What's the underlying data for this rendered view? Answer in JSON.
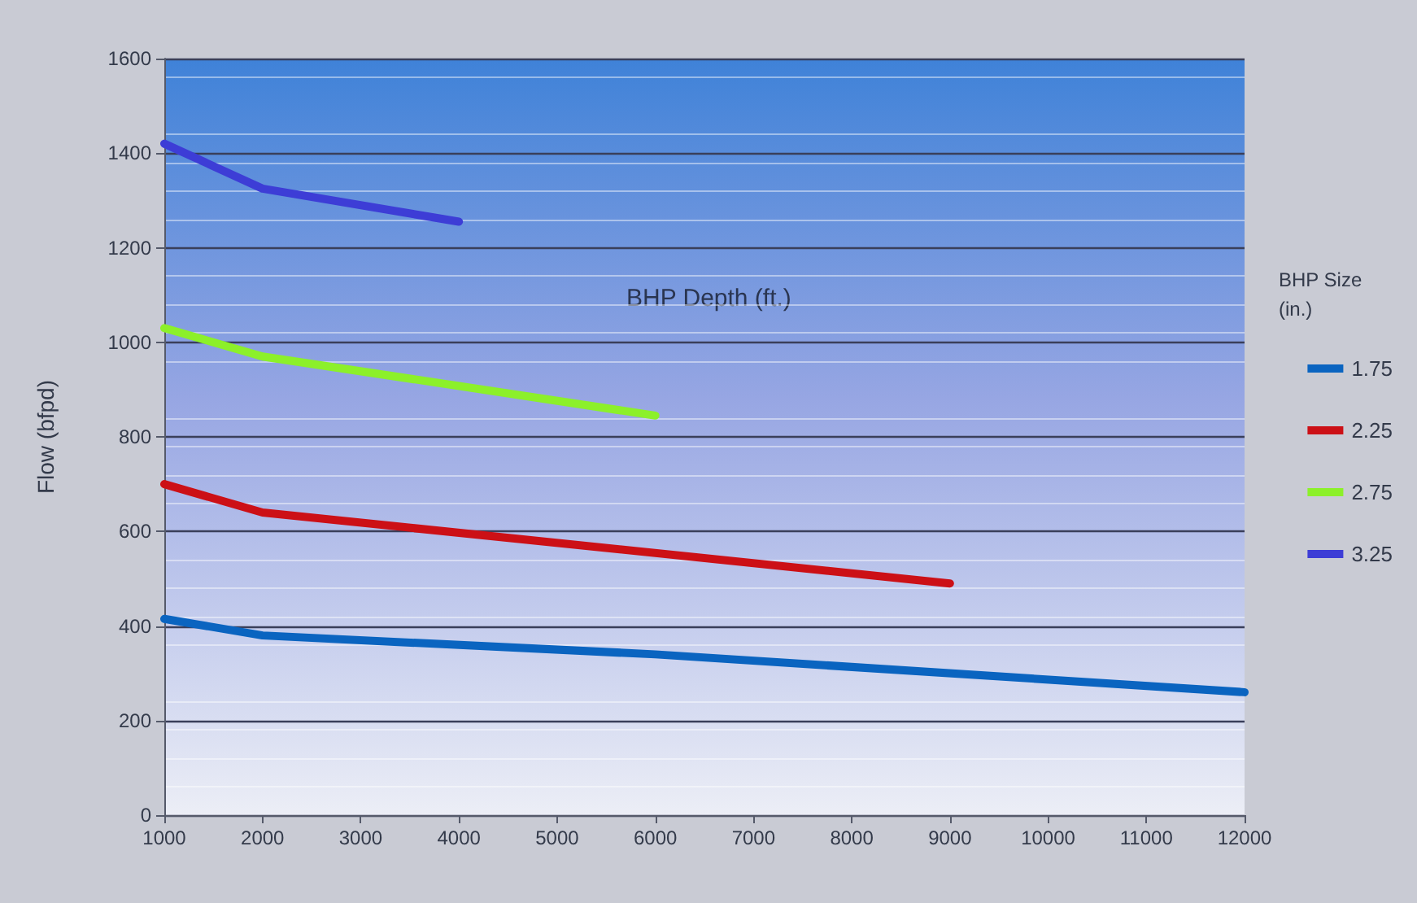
{
  "chart_data": {
    "type": "line",
    "xlabel": "BHP Depth (ft.)",
    "ylabel": "Flow (bfpd)",
    "legend_title": "BHP Size (in.)",
    "series": [
      {
        "name": "1.75",
        "color": "#0a64c0",
        "x": [
          1000,
          2000,
          6000,
          12000
        ],
        "values": [
          415,
          380,
          340,
          260
        ]
      },
      {
        "name": "2.25",
        "color": "#cc1016",
        "x": [
          1000,
          2000,
          9000
        ],
        "values": [
          700,
          640,
          490
        ]
      },
      {
        "name": "2.75",
        "color": "#8cf02a",
        "x": [
          1000,
          2000,
          6000
        ],
        "values": [
          1030,
          970,
          845
        ]
      },
      {
        "name": "3.25",
        "color": "#3d3dd6",
        "x": [
          1000,
          2000,
          4000
        ],
        "values": [
          1420,
          1325,
          1255
        ]
      }
    ],
    "xlim": [
      1000,
      12000
    ],
    "xticks": [
      1000,
      2000,
      3000,
      4000,
      5000,
      6000,
      7000,
      8000,
      9000,
      10000,
      11000,
      12000
    ],
    "ylim": [
      0,
      1600
    ],
    "yticks": [
      0,
      200,
      400,
      600,
      800,
      1000,
      1200,
      1400,
      1600
    ],
    "grid": "y",
    "legend": "right",
    "marker": "none",
    "line_style": "solid"
  }
}
